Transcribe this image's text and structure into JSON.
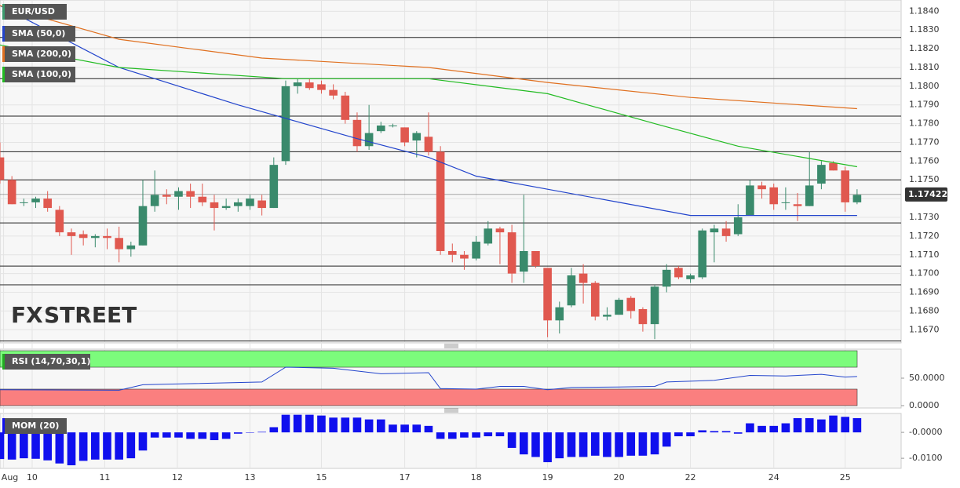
{
  "chart_data": [
    {
      "type": "candlestick",
      "xlim": [
        0,
        75.7
      ],
      "ylim": [
        1.1663,
        1.1846
      ],
      "yticks": [
        {
          "value": 1.184,
          "label": "1.1840"
        },
        {
          "value": 1.183,
          "label": "1.1830"
        },
        {
          "value": 1.182,
          "label": "1.1820"
        },
        {
          "value": 1.181,
          "label": "1.1810"
        },
        {
          "value": 1.18,
          "label": "1.1800"
        },
        {
          "value": 1.179,
          "label": "1.1790"
        },
        {
          "value": 1.178,
          "label": "1.1780"
        },
        {
          "value": 1.177,
          "label": "1.1770"
        },
        {
          "value": 1.176,
          "label": "1.1760"
        },
        {
          "value": 1.175,
          "label": "1.1750"
        },
        {
          "value": 1.174,
          "label": "1.1740"
        },
        {
          "value": 1.173,
          "label": "1.1730"
        },
        {
          "value": 1.172,
          "label": "1.1720"
        },
        {
          "value": 1.171,
          "label": "1.1710"
        },
        {
          "value": 1.17,
          "label": "1.1700"
        },
        {
          "value": 1.169,
          "label": "1.1690"
        },
        {
          "value": 1.168,
          "label": "1.1680"
        },
        {
          "value": 1.167,
          "label": "1.1670"
        }
      ],
      "grid": true,
      "candles": {
        "name": "EUR/USD",
        "color": "#3b9a6d",
        "up_color": "#3a8a6c",
        "down_color": "#e0584f",
        "open": [
          1.1762,
          1.175,
          1.1738,
          1.1738,
          1.174,
          1.1734,
          1.1722,
          1.1721,
          1.1719,
          1.172,
          1.1719,
          1.1713,
          1.1715,
          1.1736,
          1.1742,
          1.1741,
          1.1744,
          1.1741,
          1.1738,
          1.1735,
          1.1736,
          1.1736,
          1.1739,
          1.1735,
          1.176,
          1.18,
          1.1802,
          1.1801,
          1.1798,
          1.1795,
          1.1782,
          1.1768,
          1.1776,
          1.1779,
          1.1778,
          1.1771,
          1.1773,
          1.1765,
          1.1712,
          1.171,
          1.1708,
          1.1716,
          1.1724,
          1.1722,
          1.1701,
          1.1712,
          1.1703,
          1.1675,
          1.1683,
          1.17,
          1.1695,
          1.1677,
          1.1678,
          1.1687,
          1.1681,
          1.1673,
          1.1693,
          1.1703,
          1.1697,
          1.1698,
          1.1722,
          1.1724,
          1.1721,
          1.1731,
          1.1747,
          1.1746,
          1.1738,
          1.1737,
          1.1736,
          1.1748,
          1.1759,
          1.1755,
          1.1738
        ],
        "high": [
          1.177,
          1.1752,
          1.174,
          1.1741,
          1.1744,
          1.1736,
          1.1724,
          1.1723,
          1.1721,
          1.1724,
          1.1725,
          1.1717,
          1.175,
          1.1755,
          1.1745,
          1.1746,
          1.1748,
          1.1748,
          1.1742,
          1.174,
          1.174,
          1.1742,
          1.1742,
          1.1762,
          1.1803,
          1.1804,
          1.1804,
          1.1803,
          1.1801,
          1.1797,
          1.1786,
          1.179,
          1.1781,
          1.178,
          1.1778,
          1.1776,
          1.1786,
          1.1768,
          1.1716,
          1.1712,
          1.172,
          1.1728,
          1.1725,
          1.1726,
          1.1742,
          1.1712,
          1.1703,
          1.1685,
          1.1703,
          1.1705,
          1.1696,
          1.1682,
          1.1687,
          1.1688,
          1.1682,
          1.1694,
          1.1705,
          1.1704,
          1.17,
          1.1724,
          1.1726,
          1.1728,
          1.1737,
          1.175,
          1.1749,
          1.1748,
          1.1746,
          1.1743,
          1.1765,
          1.176,
          1.176,
          1.1757,
          1.1745
        ],
        "low": [
          1.1748,
          1.1737,
          1.1736,
          1.1735,
          1.1733,
          1.172,
          1.171,
          1.1715,
          1.1714,
          1.1713,
          1.1706,
          1.1709,
          1.1715,
          1.1733,
          1.1737,
          1.1734,
          1.1735,
          1.1736,
          1.1723,
          1.1734,
          1.1733,
          1.1734,
          1.1731,
          1.1735,
          1.1758,
          1.1796,
          1.1798,
          1.1796,
          1.1793,
          1.178,
          1.1765,
          1.1766,
          1.1775,
          1.1778,
          1.1768,
          1.1762,
          1.1763,
          1.171,
          1.1706,
          1.1702,
          1.1707,
          1.1715,
          1.1705,
          1.1695,
          1.1695,
          1.1703,
          1.1666,
          1.1668,
          1.1682,
          1.1684,
          1.1675,
          1.1675,
          1.1678,
          1.1676,
          1.1669,
          1.1665,
          1.169,
          1.1697,
          1.1695,
          1.1697,
          1.1706,
          1.1717,
          1.172,
          1.1731,
          1.174,
          1.1734,
          1.1734,
          1.1728,
          1.1736,
          1.1745,
          1.1755,
          1.1733,
          1.1737
        ],
        "close": [
          1.175,
          1.1737,
          1.1738,
          1.174,
          1.1735,
          1.1722,
          1.172,
          1.1719,
          1.172,
          1.1719,
          1.1713,
          1.1715,
          1.1736,
          1.1742,
          1.1741,
          1.1744,
          1.1741,
          1.1738,
          1.1735,
          1.1736,
          1.1738,
          1.174,
          1.1735,
          1.1758,
          1.18,
          1.1802,
          1.1799,
          1.1798,
          1.1795,
          1.1782,
          1.1768,
          1.1775,
          1.1779,
          1.1779,
          1.177,
          1.1775,
          1.1765,
          1.1712,
          1.171,
          1.1708,
          1.1717,
          1.1724,
          1.1722,
          1.17,
          1.1712,
          1.1704,
          1.1675,
          1.1682,
          1.1699,
          1.1695,
          1.1677,
          1.1678,
          1.1686,
          1.168,
          1.1673,
          1.1693,
          1.1702,
          1.1698,
          1.1699,
          1.1723,
          1.1724,
          1.172,
          1.173,
          1.1747,
          1.1745,
          1.1737,
          1.1738,
          1.1736,
          1.1747,
          1.1758,
          1.1755,
          1.1738,
          1.1742
        ]
      },
      "series": [
        {
          "name": "SMA (50,0)",
          "color": "#2244cc",
          "x": [
            0,
            10,
            20,
            30,
            36,
            40,
            46,
            52,
            58,
            65,
            72
          ],
          "values": [
            1.1843,
            1.181,
            1.179,
            1.1772,
            1.1762,
            1.1752,
            1.1745,
            1.1738,
            1.1731,
            1.1731,
            1.1731
          ]
        },
        {
          "name": "SMA (200,0)",
          "color": "#e07020",
          "x": [
            0,
            10,
            22,
            36,
            46,
            58,
            72
          ],
          "values": [
            1.1843,
            1.1825,
            1.1815,
            1.181,
            1.1802,
            1.1794,
            1.1788
          ]
        },
        {
          "name": "SMA (100,0)",
          "color": "#22bb22",
          "x": [
            0,
            10,
            24,
            36,
            46,
            55,
            62,
            72
          ],
          "values": [
            1.1822,
            1.181,
            1.1804,
            1.1804,
            1.1796,
            1.178,
            1.1768,
            1.1757
          ]
        }
      ],
      "levels": [
        1.1826,
        1.1804,
        1.1784,
        1.1765,
        1.175,
        1.1727,
        1.1704,
        1.1694,
        1.1664
      ],
      "last_price": {
        "value": 1.17422,
        "label": "1.17422"
      },
      "watermark": {
        "part1": "FX",
        "part2": "STREET"
      }
    },
    {
      "type": "line",
      "xlim": [
        0,
        75.7
      ],
      "ylim": [
        -4.3,
        102.9
      ],
      "yticks": [
        {
          "value": 50,
          "label": "50.0000"
        },
        {
          "value": 0,
          "label": "0.0000"
        }
      ],
      "bands": [
        {
          "from": 70,
          "to": 100,
          "color": "#7cfc7c"
        },
        {
          "from": 0,
          "to": 30,
          "color": "#fa7f7f"
        }
      ],
      "legend_title": "RSI (14,70,30,1)",
      "series": [
        {
          "name": "RSI",
          "color": "#2244cc",
          "x": [
            0,
            10,
            12,
            16,
            22,
            24,
            28,
            32,
            36,
            37,
            40,
            42,
            44,
            46,
            48,
            52,
            55,
            56,
            60,
            63,
            66,
            69,
            71,
            72
          ],
          "values": [
            29,
            28,
            38,
            40,
            43,
            70,
            68,
            58,
            60,
            31,
            30,
            35,
            35,
            29,
            33,
            34,
            35,
            43,
            46,
            55,
            54,
            57,
            52,
            53
          ]
        }
      ]
    },
    {
      "type": "bar",
      "xlim": [
        0,
        75.7
      ],
      "ylim": [
        -0.0139,
        0.0073
      ],
      "yticks": [
        {
          "value": 0,
          "label": "-0.0000"
        },
        {
          "value": -0.01,
          "label": "-0.0100"
        }
      ],
      "xticks": [
        {
          "value": 0.3,
          "label": "Aug"
        },
        {
          "value": 2.7,
          "label": "10"
        },
        {
          "value": 8.8,
          "label": "11"
        },
        {
          "value": 14.9,
          "label": "12"
        },
        {
          "value": 21,
          "label": "13"
        },
        {
          "value": 27,
          "label": "15"
        },
        {
          "value": 34,
          "label": "17"
        },
        {
          "value": 40,
          "label": "18"
        },
        {
          "value": 46,
          "label": "19"
        },
        {
          "value": 52,
          "label": "20"
        },
        {
          "value": 58,
          "label": "22"
        },
        {
          "value": 65,
          "label": "24"
        },
        {
          "value": 71,
          "label": "25"
        }
      ],
      "legend_title": "MOM (20)",
      "color": "#1010ee",
      "values": [
        -0.0103,
        -0.0105,
        -0.01,
        -0.0102,
        -0.0108,
        -0.012,
        -0.0127,
        -0.011,
        -0.0105,
        -0.0105,
        -0.0105,
        -0.01,
        -0.007,
        -0.002,
        -0.002,
        -0.002,
        -0.0025,
        -0.0025,
        -0.003,
        -0.0025,
        -0.0005,
        0.0,
        0.0002,
        0.002,
        0.0068,
        0.0068,
        0.0068,
        0.0065,
        0.0057,
        0.0057,
        0.0057,
        0.005,
        0.005,
        0.003,
        0.003,
        0.003,
        0.0025,
        -0.0025,
        -0.0025,
        -0.002,
        -0.002,
        -0.0015,
        -0.0015,
        -0.006,
        -0.0085,
        -0.0095,
        -0.0115,
        -0.01,
        -0.0095,
        -0.0095,
        -0.009,
        -0.0095,
        -0.0095,
        -0.009,
        -0.009,
        -0.0085,
        -0.0055,
        -0.0015,
        -0.0015,
        0.0008,
        0.0005,
        0.0005,
        -0.0005,
        0.0035,
        0.0025,
        0.0025,
        0.0035,
        0.0055,
        0.0055,
        0.005,
        0.0065,
        0.006,
        0.0055
      ]
    }
  ]
}
